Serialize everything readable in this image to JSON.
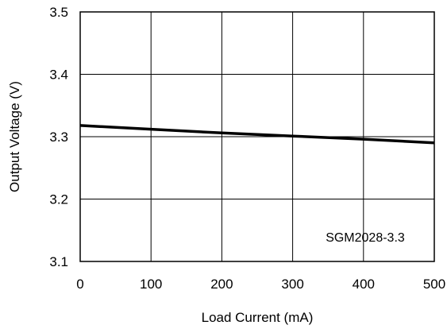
{
  "chart_data": {
    "type": "line",
    "xlabel": "Load Current (mA)",
    "ylabel": "Output Voltage (V)",
    "xlim": [
      0,
      500
    ],
    "ylim": [
      3.1,
      3.5
    ],
    "x_ticks": [
      "0",
      "100",
      "200",
      "300",
      "400",
      "500"
    ],
    "y_ticks": [
      "3.1",
      "3.2",
      "3.3",
      "3.4",
      "3.5"
    ],
    "grid": true,
    "annotation": "SGM2028-3.3",
    "series": [
      {
        "x": [
          0,
          100,
          200,
          300,
          400,
          500
        ],
        "y": [
          3.318,
          3.312,
          3.306,
          3.301,
          3.296,
          3.29
        ]
      }
    ],
    "line_color": "#000000"
  }
}
